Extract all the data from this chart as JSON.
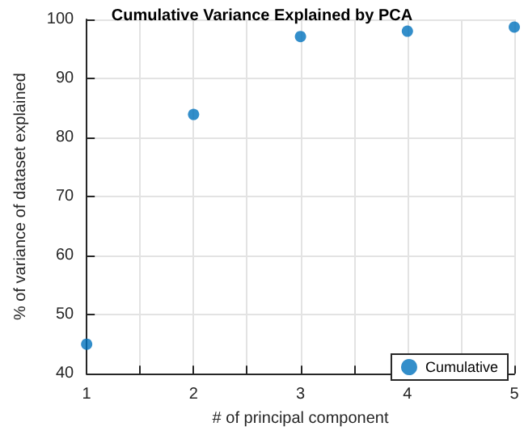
{
  "chart_data": {
    "type": "scatter",
    "title": "Cumulative Variance Explained by PCA",
    "xlabel": "# of principal component",
    "ylabel": "% of variance of dataset explained",
    "x": [
      1,
      2,
      3,
      4,
      5
    ],
    "series": [
      {
        "name": "Cumulative",
        "color": "#0072bd",
        "values": [
          45.0,
          83.9,
          97.1,
          98.0,
          98.7
        ]
      }
    ],
    "xlim": [
      1,
      5
    ],
    "xticks": [
      1,
      {
        "value": 1.5,
        "label": null
      },
      2,
      {
        "value": 2.5,
        "label": null
      },
      3,
      {
        "value": 3.5,
        "label": null
      },
      4,
      {
        "value": 4.5,
        "label": null
      },
      5
    ],
    "ylim": [
      40,
      100
    ],
    "yticks": [
      40,
      50,
      60,
      70,
      80,
      90,
      100
    ],
    "grid": true,
    "legend": "bottom right",
    "marker": "circle"
  }
}
